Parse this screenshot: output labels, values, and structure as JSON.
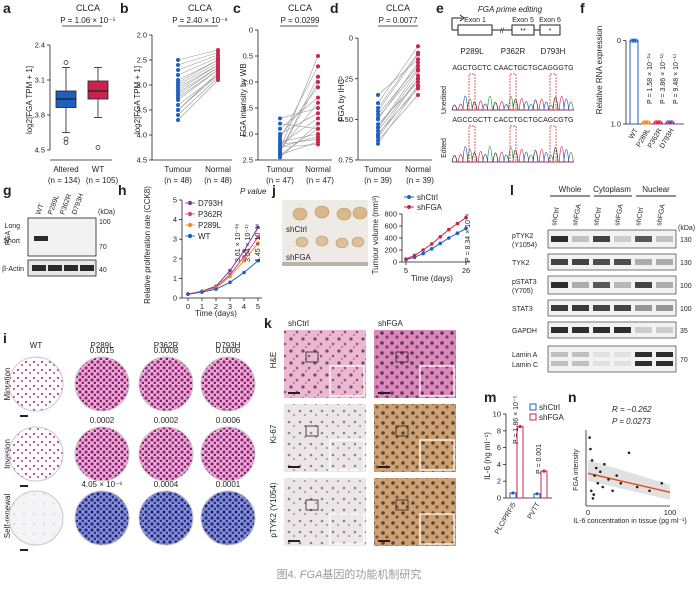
{
  "figure": {
    "caption_prefix": "图4. ",
    "caption_gene": "FGA",
    "caption_suffix": "基因的功能机制研究"
  },
  "colors": {
    "blue": "#1f5fbf",
    "red": "#c8244d",
    "pink": "#d4458c",
    "orange": "#f08a24",
    "purple": "#7a3e9d",
    "grey": "#9b9b9b"
  },
  "panels": {
    "a": {
      "label": "a",
      "title": "CLCA",
      "pvalue": "P = 1.06 × 10⁻⁵",
      "ylabel": "log2[FGA TPM + 1]",
      "yticks": [
        "2.4",
        "3.1",
        "3.8",
        "4.5"
      ],
      "groups": [
        "Altered",
        "WT"
      ],
      "ns": [
        "(n = 134)",
        "(n = 105)"
      ]
    },
    "b": {
      "label": "b",
      "title": "CLCA",
      "pvalue": "P = 2.40 × 10⁻⁸",
      "ylabel": "log2[FGA TPM + 1]",
      "yticks": [
        "2.0",
        "2.5",
        "3.0",
        "3.5",
        "4.0",
        "4.5"
      ],
      "groups": [
        "Tumour",
        "Normal"
      ],
      "ns": [
        "(n = 48)",
        "(n = 48)"
      ]
    },
    "c": {
      "label": "c",
      "title": "CLCA",
      "pvalue": "P = 0.0299",
      "ylabel": "FGA intensity by WB",
      "yticks": [
        "0",
        "0.5",
        "1.0",
        "1.5",
        "2.0",
        "2.5"
      ],
      "groups": [
        "Tumour",
        "Normal"
      ],
      "ns": [
        "(n = 47)",
        "(n = 47)"
      ]
    },
    "d": {
      "label": "d",
      "title": "CLCA",
      "pvalue": "P = 0.0077",
      "ylabel": "FGA by IHC",
      "yticks": [
        "0",
        "0.25",
        "0.50",
        "0.75"
      ],
      "groups": [
        "Tumour",
        "Normal"
      ],
      "ns": [
        "(n = 39)",
        "(n = 39)"
      ]
    },
    "e": {
      "label": "e",
      "heading": "FGA prime editing",
      "exons": [
        "Exon 1",
        "Exon 5",
        "Exon 6"
      ],
      "exon_marks": [
        "**",
        "*"
      ],
      "mutations": [
        "P289L",
        "P362R",
        "D793H"
      ],
      "rows": [
        "Unedited",
        "Edited"
      ],
      "seq_unedited": [
        "AGCTGCTC",
        "CAACTGCT",
        "GCAGGGTG"
      ],
      "seq_edited": [
        "AGCCGCTT",
        "CACCTGCT",
        "GCAGCGTG"
      ]
    },
    "f": {
      "label": "f",
      "ylabel": "Relative RNA expression",
      "yticks": [
        "0",
        "1.0"
      ],
      "categories": [
        "WT",
        "P289L",
        "P362R",
        "D793H"
      ],
      "pvalues": [
        "P = 1.58 × 10⁻¹⁴",
        "P = 3.86 × 10⁻¹⁵",
        "P = 9.48 × 10⁻¹⁷"
      ]
    },
    "g": {
      "label": "g",
      "lanes": [
        "WT",
        "P289L",
        "P362R",
        "D793H"
      ],
      "kda_label": "(kDa)",
      "markers": [
        "100",
        "70",
        "40"
      ],
      "bands": [
        "Long",
        "Short",
        "β-Actin"
      ],
      "protein": "FGA"
    },
    "h": {
      "label": "h",
      "pvalue_title": "P value",
      "ylabel": "Relative proliferation rate (CCK8)",
      "xlabel": "Time (days)",
      "xticks": [
        "0",
        "1",
        "2",
        "3",
        "4",
        "5"
      ],
      "yticks": [
        "0",
        "1",
        "2",
        "3",
        "4",
        "5"
      ],
      "legend": [
        "D793H",
        "P362R",
        "P289L",
        "WT"
      ],
      "pvalues": [
        "3.61 × 10⁻¹⁸",
        "3.54 × 10⁻¹⁷",
        "1.45 × 10⁻¹⁸"
      ]
    },
    "j": {
      "label": "j",
      "groups": [
        "shCtrl",
        "shFGA"
      ],
      "ylabel": "Tumour volume (mm³)",
      "xlabel": "Time (days)",
      "xticks": [
        "5",
        "26"
      ],
      "yticks": [
        "0",
        "200",
        "400",
        "600",
        "800"
      ],
      "pvalue": "P = 8.34 × 10⁻⁸"
    },
    "l": {
      "label": "l",
      "fractions": [
        "Whole",
        "Cytoplasm",
        "Nuclear"
      ],
      "lanes": [
        "shCtrl",
        "shFGA",
        "shCtrl",
        "shFGA",
        "shCtrl",
        "shFGA"
      ],
      "kda_label": "(kDa)",
      "rows": [
        {
          "name": "pTYK2 (Y1054)",
          "kda": "130"
        },
        {
          "name": "TYK2",
          "kda": "130"
        },
        {
          "name": "pSTAT3 (Y705)",
          "kda": "100"
        },
        {
          "name": "STAT3",
          "kda": "100"
        },
        {
          "name": "GAPDH",
          "kda": "35"
        },
        {
          "name": "Lamin A Lamin C",
          "kda": "70"
        }
      ]
    },
    "i": {
      "label": "i",
      "columns": [
        "WT",
        "P289L",
        "P362R",
        "D793H"
      ],
      "rows": [
        "Migration",
        "Invasion",
        "Self-renewal"
      ],
      "pvalues": [
        [
          "0.0015",
          "0.0008",
          "0.0006"
        ],
        [
          "0.0002",
          "0.0002",
          "0.0006"
        ],
        [
          "4.05 × 10⁻⁶",
          "0.0004",
          "0.0001"
        ]
      ]
    },
    "k": {
      "label": "k",
      "columns": [
        "shCtrl",
        "shFGA"
      ],
      "rows": [
        "H&E",
        "Ki-67",
        "pTYK2 (Y1054)"
      ]
    },
    "m": {
      "label": "m",
      "ylabel": "IL-6 (ng ml⁻¹)",
      "legend": [
        "shCtrl",
        "shFGA"
      ],
      "categories": [
        "PLC/PRF/5",
        "PVTT"
      ],
      "yticks": [
        "0",
        "2",
        "4",
        "6",
        "8",
        "10"
      ],
      "pvalues": [
        "P = 1.86 × 10⁻⁵",
        "P = 0.001"
      ]
    },
    "n": {
      "label": "n",
      "r": "R = −0.262",
      "p": "P = 0.0273",
      "ylabel": "FGA intensity",
      "xlabel": "IL-6 concentration in tissue (pg ml⁻¹)",
      "xticks": [
        "0",
        "100"
      ]
    }
  },
  "chart_data": [
    {
      "panel": "a",
      "type": "box",
      "title": "CLCA",
      "ylabel": "log2[FGA TPM + 1]",
      "ylim": [
        2.2,
        4.8
      ],
      "categories": [
        "Altered",
        "WT"
      ],
      "boxes": [
        {
          "name": "Altered",
          "whisker_low": 2.75,
          "q1": 3.25,
          "median": 3.42,
          "q3": 3.58,
          "whisker_high": 4.05,
          "outliers": [
            4.15,
            2.62,
            2.55
          ]
        },
        {
          "name": "WT",
          "whisker_low": 3.05,
          "q1": 3.42,
          "median": 3.58,
          "q3": 3.78,
          "whisker_high": 4.05,
          "outliers": [
            2.45
          ]
        }
      ]
    },
    {
      "panel": "b",
      "type": "paired",
      "title": "CLCA",
      "ylim": [
        2.0,
        4.6
      ],
      "categories": [
        "Tumour",
        "Normal"
      ],
      "tumour": [
        3.2,
        3.4,
        3.0,
        3.6,
        3.8,
        3.3,
        3.5,
        3.1,
        2.9,
        3.7,
        3.9,
        4.0,
        3.45,
        3.25,
        3.55,
        3.0,
        2.8,
        3.35
      ],
      "normal": [
        3.8,
        3.9,
        3.75,
        4.0,
        4.1,
        3.85,
        3.95,
        3.7,
        3.65,
        4.05,
        4.15,
        4.2,
        3.9,
        3.8,
        4.0,
        3.7,
        3.6,
        3.85
      ]
    },
    {
      "panel": "c",
      "type": "paired",
      "title": "CLCA",
      "ylim": [
        0,
        2.5
      ],
      "categories": [
        "Tumour",
        "Normal"
      ],
      "tumour": [
        0.1,
        0.2,
        0.3,
        0.15,
        0.5,
        0.25,
        0.4,
        0.05,
        0.6,
        0.35,
        0.2,
        0.8,
        0.1,
        0.45,
        0.3,
        0.7,
        0.15,
        0.25
      ],
      "normal": [
        0.6,
        1.1,
        0.4,
        1.5,
        0.9,
        0.3,
        1.8,
        0.7,
        1.2,
        0.5,
        2.0,
        1.0,
        0.35,
        1.4,
        0.8,
        0.6,
        1.6,
        0.45
      ]
    },
    {
      "panel": "d",
      "type": "paired",
      "title": "CLCA",
      "ylim": [
        0,
        0.8
      ],
      "categories": [
        "Tumour",
        "Normal"
      ],
      "tumour": [
        0.1,
        0.15,
        0.2,
        0.25,
        0.3,
        0.18,
        0.22,
        0.12,
        0.35,
        0.28,
        0.4,
        0.2,
        0.16,
        0.32,
        0.26,
        0.14
      ],
      "normal": [
        0.45,
        0.5,
        0.55,
        0.6,
        0.65,
        0.5,
        0.48,
        0.4,
        0.7,
        0.58,
        0.62,
        0.52,
        0.44,
        0.66,
        0.56,
        0.46
      ]
    },
    {
      "panel": "f",
      "type": "bar",
      "ylabel": "Relative RNA expression",
      "ylim": [
        0,
        1.2
      ],
      "categories": [
        "WT",
        "P289L",
        "P362R",
        "D793H"
      ],
      "values": [
        1.0,
        0.02,
        0.02,
        0.02
      ]
    },
    {
      "panel": "h",
      "type": "line",
      "xlabel": "Time (days)",
      "ylabel": "Relative proliferation rate (CCK8)",
      "x": [
        0,
        1,
        2,
        3,
        4,
        5
      ],
      "ylim": [
        0,
        5
      ],
      "series": [
        {
          "name": "D793H",
          "values": [
            0.2,
            0.35,
            0.6,
            1.4,
            2.4,
            3.6
          ]
        },
        {
          "name": "P362R",
          "values": [
            0.2,
            0.33,
            0.55,
            1.2,
            2.1,
            3.1
          ]
        },
        {
          "name": "P289L",
          "values": [
            0.2,
            0.32,
            0.52,
            1.1,
            1.9,
            2.8
          ]
        },
        {
          "name": "WT",
          "values": [
            0.2,
            0.3,
            0.45,
            0.8,
            1.3,
            1.9
          ]
        }
      ]
    },
    {
      "panel": "j",
      "type": "line",
      "xlabel": "Time (days)",
      "ylabel": "Tumour volume (mm³)",
      "x": [
        5,
        8,
        11,
        14,
        17,
        20,
        23,
        26
      ],
      "ylim": [
        0,
        800
      ],
      "series": [
        {
          "name": "shCtrl",
          "values": [
            40,
            80,
            140,
            220,
            310,
            400,
            480,
            560
          ]
        },
        {
          "name": "shFGA",
          "values": [
            50,
            110,
            200,
            300,
            420,
            540,
            640,
            740
          ]
        }
      ]
    },
    {
      "panel": "m",
      "type": "bar",
      "ylabel": "IL-6 (ng ml⁻¹)",
      "ylim": [
        0,
        10
      ],
      "categories": [
        "PLC/PRF/5",
        "PVTT"
      ],
      "series": [
        {
          "name": "shCtrl",
          "values": [
            0.6,
            0.5
          ]
        },
        {
          "name": "shFGA",
          "values": [
            8.5,
            3.2
          ]
        }
      ]
    },
    {
      "panel": "n",
      "type": "scatter",
      "xlabel": "IL-6 concentration in tissue (pg ml⁻¹)",
      "ylabel": "FGA intensity",
      "xlim": [
        0,
        100
      ],
      "ylim": [
        0,
        1.0
      ],
      "x": [
        2,
        4,
        5,
        6,
        8,
        10,
        12,
        15,
        18,
        20,
        25,
        30,
        35,
        40,
        50,
        60,
        75,
        90,
        3,
        7
      ],
      "y": [
        0.9,
        0.2,
        0.6,
        0.1,
        0.4,
        0.5,
        0.3,
        0.45,
        0.25,
        0.55,
        0.35,
        0.2,
        0.4,
        0.3,
        0.7,
        0.25,
        0.2,
        0.3,
        0.75,
        0.15
      ],
      "fit": {
        "slope": -0.0025,
        "intercept": 0.43
      }
    }
  ]
}
